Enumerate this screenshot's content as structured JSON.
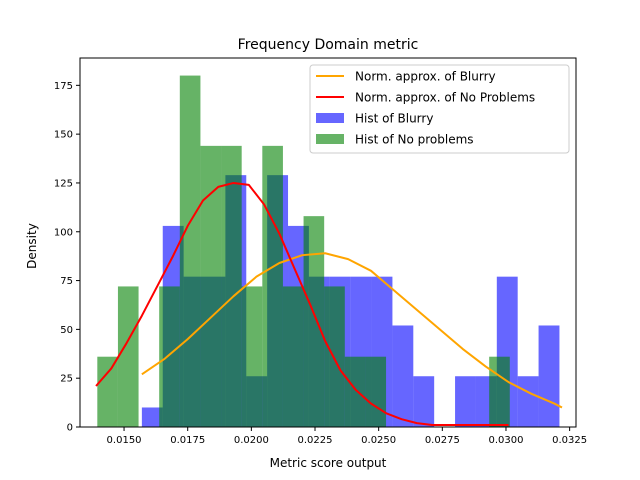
{
  "chart_data": {
    "type": "bar",
    "title": "Frequency Domain metric",
    "xlabel": "Metric score output",
    "ylabel": "Density",
    "xlim": [
      0.01327,
      0.03275
    ],
    "ylim": [
      0,
      189
    ],
    "xticks": [
      0.015,
      0.0175,
      0.02,
      0.0225,
      0.025,
      0.0275,
      0.03,
      0.0325
    ],
    "xtick_labels": [
      "0.0150",
      "0.0175",
      "0.0200",
      "0.0225",
      "0.0250",
      "0.0275",
      "0.0300",
      "0.0325"
    ],
    "yticks": [
      0,
      25,
      50,
      75,
      100,
      125,
      150,
      175
    ],
    "ytick_labels": [
      "0",
      "25",
      "50",
      "75",
      "100",
      "125",
      "150",
      "175"
    ],
    "legend_position": "top-right",
    "legend": [
      "Norm. approx. of Blurry",
      "Norm. approx. of No Problems",
      "Hist of Blurry",
      "Hist of No problems"
    ],
    "colors": {
      "blurry_hist": "#0000ff",
      "no_problems_hist": "#008000",
      "blurry_curve": "#ffa500",
      "no_problems_curve": "#ff0000"
    },
    "histograms": [
      {
        "name": "Hist of Blurry",
        "bin_edges": [
          0.0157,
          0.01652,
          0.01734,
          0.01816,
          0.01898,
          0.0198,
          0.02062,
          0.02144,
          0.02226,
          0.02308,
          0.0239,
          0.02472,
          0.02554,
          0.02636,
          0.02718,
          0.028,
          0.02882,
          0.02964,
          0.03046,
          0.03128,
          0.0321,
          0.03292
        ],
        "values": [
          10,
          103,
          77,
          77,
          129,
          26,
          129,
          103,
          77,
          77,
          77,
          77,
          52,
          26,
          0,
          26,
          26,
          77,
          26,
          52,
          0
        ]
      },
      {
        "name": "Hist of No problems",
        "bin_edges": [
          0.01395,
          0.01476,
          0.01557,
          0.01638,
          0.01719,
          0.018,
          0.01881,
          0.01962,
          0.02043,
          0.02124,
          0.02205,
          0.02286,
          0.02367,
          0.02448,
          0.02529,
          0.0261,
          0.02691,
          0.02772,
          0.02853,
          0.02934,
          0.03015
        ],
        "values": [
          36,
          72,
          0,
          72,
          180,
          144,
          144,
          72,
          144,
          72,
          108,
          72,
          36,
          36,
          0,
          0,
          0,
          0,
          0,
          36
        ]
      }
    ],
    "series": [
      {
        "name": "Norm. approx. of Blurry",
        "x": [
          0.0157,
          0.0166,
          0.0175,
          0.0184,
          0.0193,
          0.0202,
          0.0211,
          0.022,
          0.0229,
          0.0238,
          0.0247,
          0.0256,
          0.0265,
          0.0274,
          0.0283,
          0.0292,
          0.0301,
          0.031,
          0.0319,
          0.0322
        ],
        "y": [
          27,
          35,
          45,
          56,
          67,
          77,
          84,
          88,
          89,
          86,
          80,
          70,
          60,
          50,
          40,
          31,
          23,
          17,
          12,
          10
        ]
      },
      {
        "name": "Norm. approx. of No Problems",
        "x": [
          0.0139,
          0.0145,
          0.0151,
          0.0157,
          0.0163,
          0.0169,
          0.0175,
          0.0181,
          0.0187,
          0.0193,
          0.0199,
          0.0205,
          0.0211,
          0.0217,
          0.0223,
          0.0229,
          0.0235,
          0.0241,
          0.0247,
          0.0253,
          0.0259,
          0.0265,
          0.0271,
          0.0277,
          0.0283,
          0.0289,
          0.0295,
          0.0301
        ],
        "y": [
          21,
          30,
          43,
          57,
          72,
          87,
          103,
          116,
          123,
          125,
          124,
          114,
          99,
          81,
          63,
          44,
          29,
          19,
          12,
          7,
          4,
          2,
          1,
          1,
          1,
          1,
          1,
          1
        ]
      }
    ]
  }
}
